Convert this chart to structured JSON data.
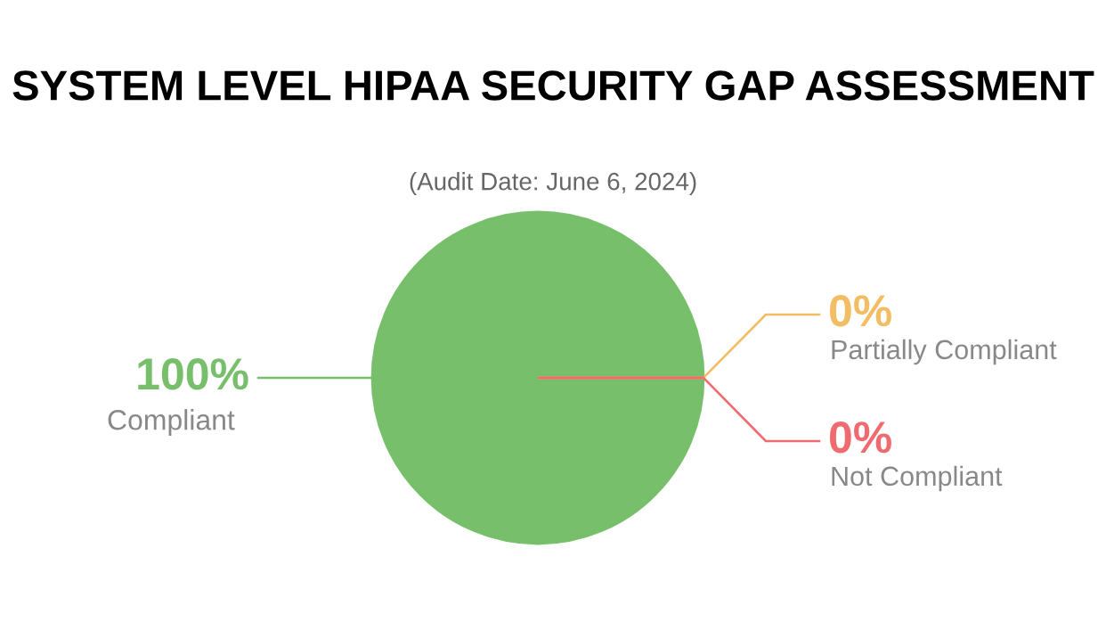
{
  "chart_data": {
    "type": "pie",
    "title": "SYSTEM LEVEL HIPAA SECURITY GAP ASSESSMENT",
    "subtitle": "(Audit Date: June 6, 2024)",
    "categories": [
      "Compliant",
      "Partially Compliant",
      "Not Compliant"
    ],
    "values": [
      100,
      0,
      0
    ],
    "colors": [
      "#77bf6a",
      "#f2bd63",
      "#ef6b70"
    ],
    "value_labels": [
      "100%",
      "0%",
      "0%"
    ]
  }
}
